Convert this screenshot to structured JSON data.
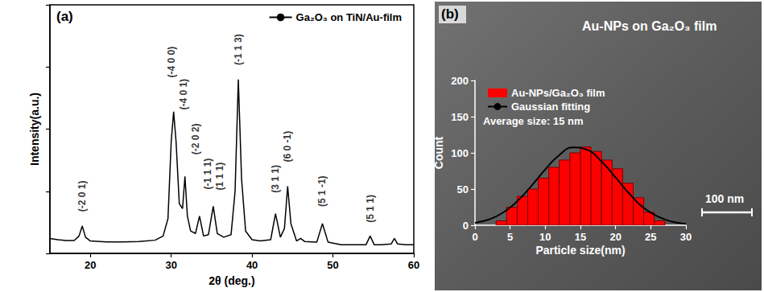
{
  "chart_data": [
    {
      "type": "line",
      "panel_label": "(a)",
      "x_label": "2θ (deg.)",
      "y_label": "Intensity(a.u.)",
      "x": [
        15,
        16,
        17,
        18,
        18.6,
        19.0,
        19.4,
        20,
        22,
        24,
        26,
        28,
        29,
        29.6,
        30.0,
        30.3,
        30.6,
        31.0,
        31.4,
        31.7,
        32.0,
        32.4,
        33.0,
        33.5,
        34.0,
        34.6,
        35.2,
        35.7,
        36.5,
        37.4,
        37.9,
        38.3,
        38.7,
        39.2,
        40,
        41,
        42.3,
        42.9,
        43.5,
        44.0,
        44.4,
        44.8,
        45.5,
        46.0,
        46.5,
        48.0,
        48.7,
        49.4,
        51,
        53,
        54.1,
        54.6,
        55.1,
        56,
        57.2,
        57.6,
        58,
        59,
        60
      ],
      "series": [
        {
          "name": "Ga₂O₃ on TiN/Au-film",
          "color": "#000000",
          "values": [
            6,
            5.5,
            5.2,
            5.2,
            7,
            11,
            6.5,
            5,
            4.6,
            4.6,
            4.8,
            5.3,
            7,
            14,
            45,
            57,
            45,
            20,
            18,
            31,
            15,
            9,
            8,
            15,
            7,
            7.5,
            19,
            8,
            6.5,
            7.5,
            25,
            70,
            30,
            9,
            5.5,
            5,
            5.5,
            16,
            6.5,
            10,
            27,
            12,
            5,
            6,
            4.8,
            4.5,
            12,
            4.5,
            3.5,
            3.5,
            3.5,
            7,
            3.5,
            3.5,
            3.8,
            6,
            3.8,
            3.5,
            3.5
          ]
        }
      ],
      "annotations": [
        {
          "text": "(-2 0 1)",
          "x": 19,
          "y": 23
        },
        {
          "text": "(-4 0 0)",
          "x": 30.0,
          "y": 77
        },
        {
          "text": "(-4 0 1)",
          "x": 31.5,
          "y": 64
        },
        {
          "text": "(-2 0 2)",
          "x": 33.0,
          "y": 46
        },
        {
          "text": "(-1 1 1)",
          "x": 34.5,
          "y": 32
        },
        {
          "text": "(1 1 1)",
          "x": 36.0,
          "y": 31
        },
        {
          "text": "(-1 1 3)",
          "x": 38.3,
          "y": 82
        },
        {
          "text": "(3 1 1)",
          "x": 42.9,
          "y": 30
        },
        {
          "text": "(6 0 -1)",
          "x": 44.4,
          "y": 43
        },
        {
          "text": "(5 1 -1)",
          "x": 48.7,
          "y": 25
        },
        {
          "text": "(5 1 1)",
          "x": 54.6,
          "y": 18
        }
      ],
      "xlim": [
        15,
        60
      ],
      "xticks": [
        20,
        30,
        40,
        50,
        60
      ],
      "ylim": [
        0,
        100
      ],
      "yticks": [
        0,
        25,
        50,
        75,
        100
      ],
      "tick_labels": "x",
      "grid": false,
      "legend": "upper right"
    },
    {
      "type": "histogram",
      "panel_label": "(b)",
      "title": "Au-NPs on Ga₂O₃ film",
      "x_label": "Particle size(nm)",
      "y_label": "Count",
      "series": [
        {
          "name": "Au-NPs/Ga₂O₃ film",
          "type": "histogram",
          "color": "#ff0000",
          "bins": [
            3,
            4.5,
            6,
            7.5,
            9,
            10.5,
            12,
            13.5,
            15,
            16.5,
            18,
            19.5,
            21,
            22.5,
            24,
            25.5,
            27
          ],
          "counts": [
            6,
            25,
            40,
            50,
            65,
            80,
            90,
            100,
            108,
            102,
            90,
            78,
            58,
            38,
            18,
            6
          ]
        },
        {
          "name": "Gaussian fitting",
          "type": "line",
          "color": "#000000",
          "x": [
            0,
            2,
            4,
            6,
            8,
            10,
            12,
            14,
            16,
            18,
            20,
            22,
            24,
            26,
            28,
            30
          ],
          "values": [
            3.3,
            8,
            17.5,
            33,
            54,
            77,
            97,
            107.5,
            104,
            88,
            66,
            43,
            24,
            12,
            5,
            2
          ]
        }
      ],
      "annotations": [
        {
          "text": "Average size: 15 nm"
        }
      ],
      "scale_bar": "100 nm",
      "xlim": [
        0,
        30
      ],
      "xticks": [
        0,
        5,
        10,
        15,
        20,
        25,
        30
      ],
      "ylim": [
        0,
        200
      ],
      "yticks": [
        0,
        50,
        100,
        150,
        200
      ],
      "grid": false,
      "legend": "upper left"
    }
  ]
}
